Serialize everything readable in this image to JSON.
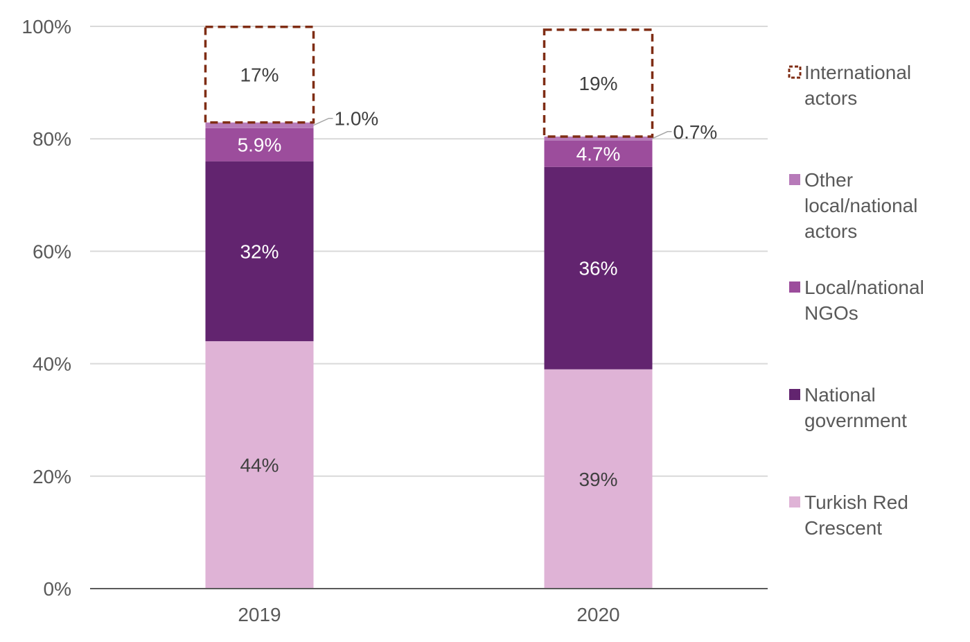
{
  "chart_data": {
    "type": "bar",
    "stacked": true,
    "categories": [
      "2019",
      "2020"
    ],
    "ylim": [
      0,
      100
    ],
    "y_ticks": [
      "0%",
      "20%",
      "40%",
      "60%",
      "80%",
      "100%"
    ],
    "grid": true,
    "legend_position": "right",
    "series": [
      {
        "name": "Turkish Red Crescent",
        "values": [
          44,
          39
        ],
        "labels": [
          "44%",
          "39%"
        ],
        "color": "#dfb3d6",
        "label_color": "#404040"
      },
      {
        "name": "National government",
        "values": [
          32,
          36
        ],
        "labels": [
          "32%",
          "36%"
        ],
        "color": "#62246f",
        "label_color": "#ffffff"
      },
      {
        "name": "Local/national NGOs",
        "values": [
          5.9,
          4.7
        ],
        "labels": [
          "5.9%",
          "4.7%"
        ],
        "color": "#9c4d9c",
        "label_color": "#ffffff"
      },
      {
        "name": "Other local/national actors",
        "values": [
          1.0,
          0.7
        ],
        "labels": [
          "1.0%",
          "0.7%"
        ],
        "color": "#b77ab9",
        "label_color": "#404040"
      },
      {
        "name": "International actors",
        "values": [
          17,
          19
        ],
        "labels": [
          "17%",
          "19%"
        ],
        "color": "#7f2d14",
        "label_color": "#404040",
        "style": "dashed-outline"
      }
    ]
  }
}
